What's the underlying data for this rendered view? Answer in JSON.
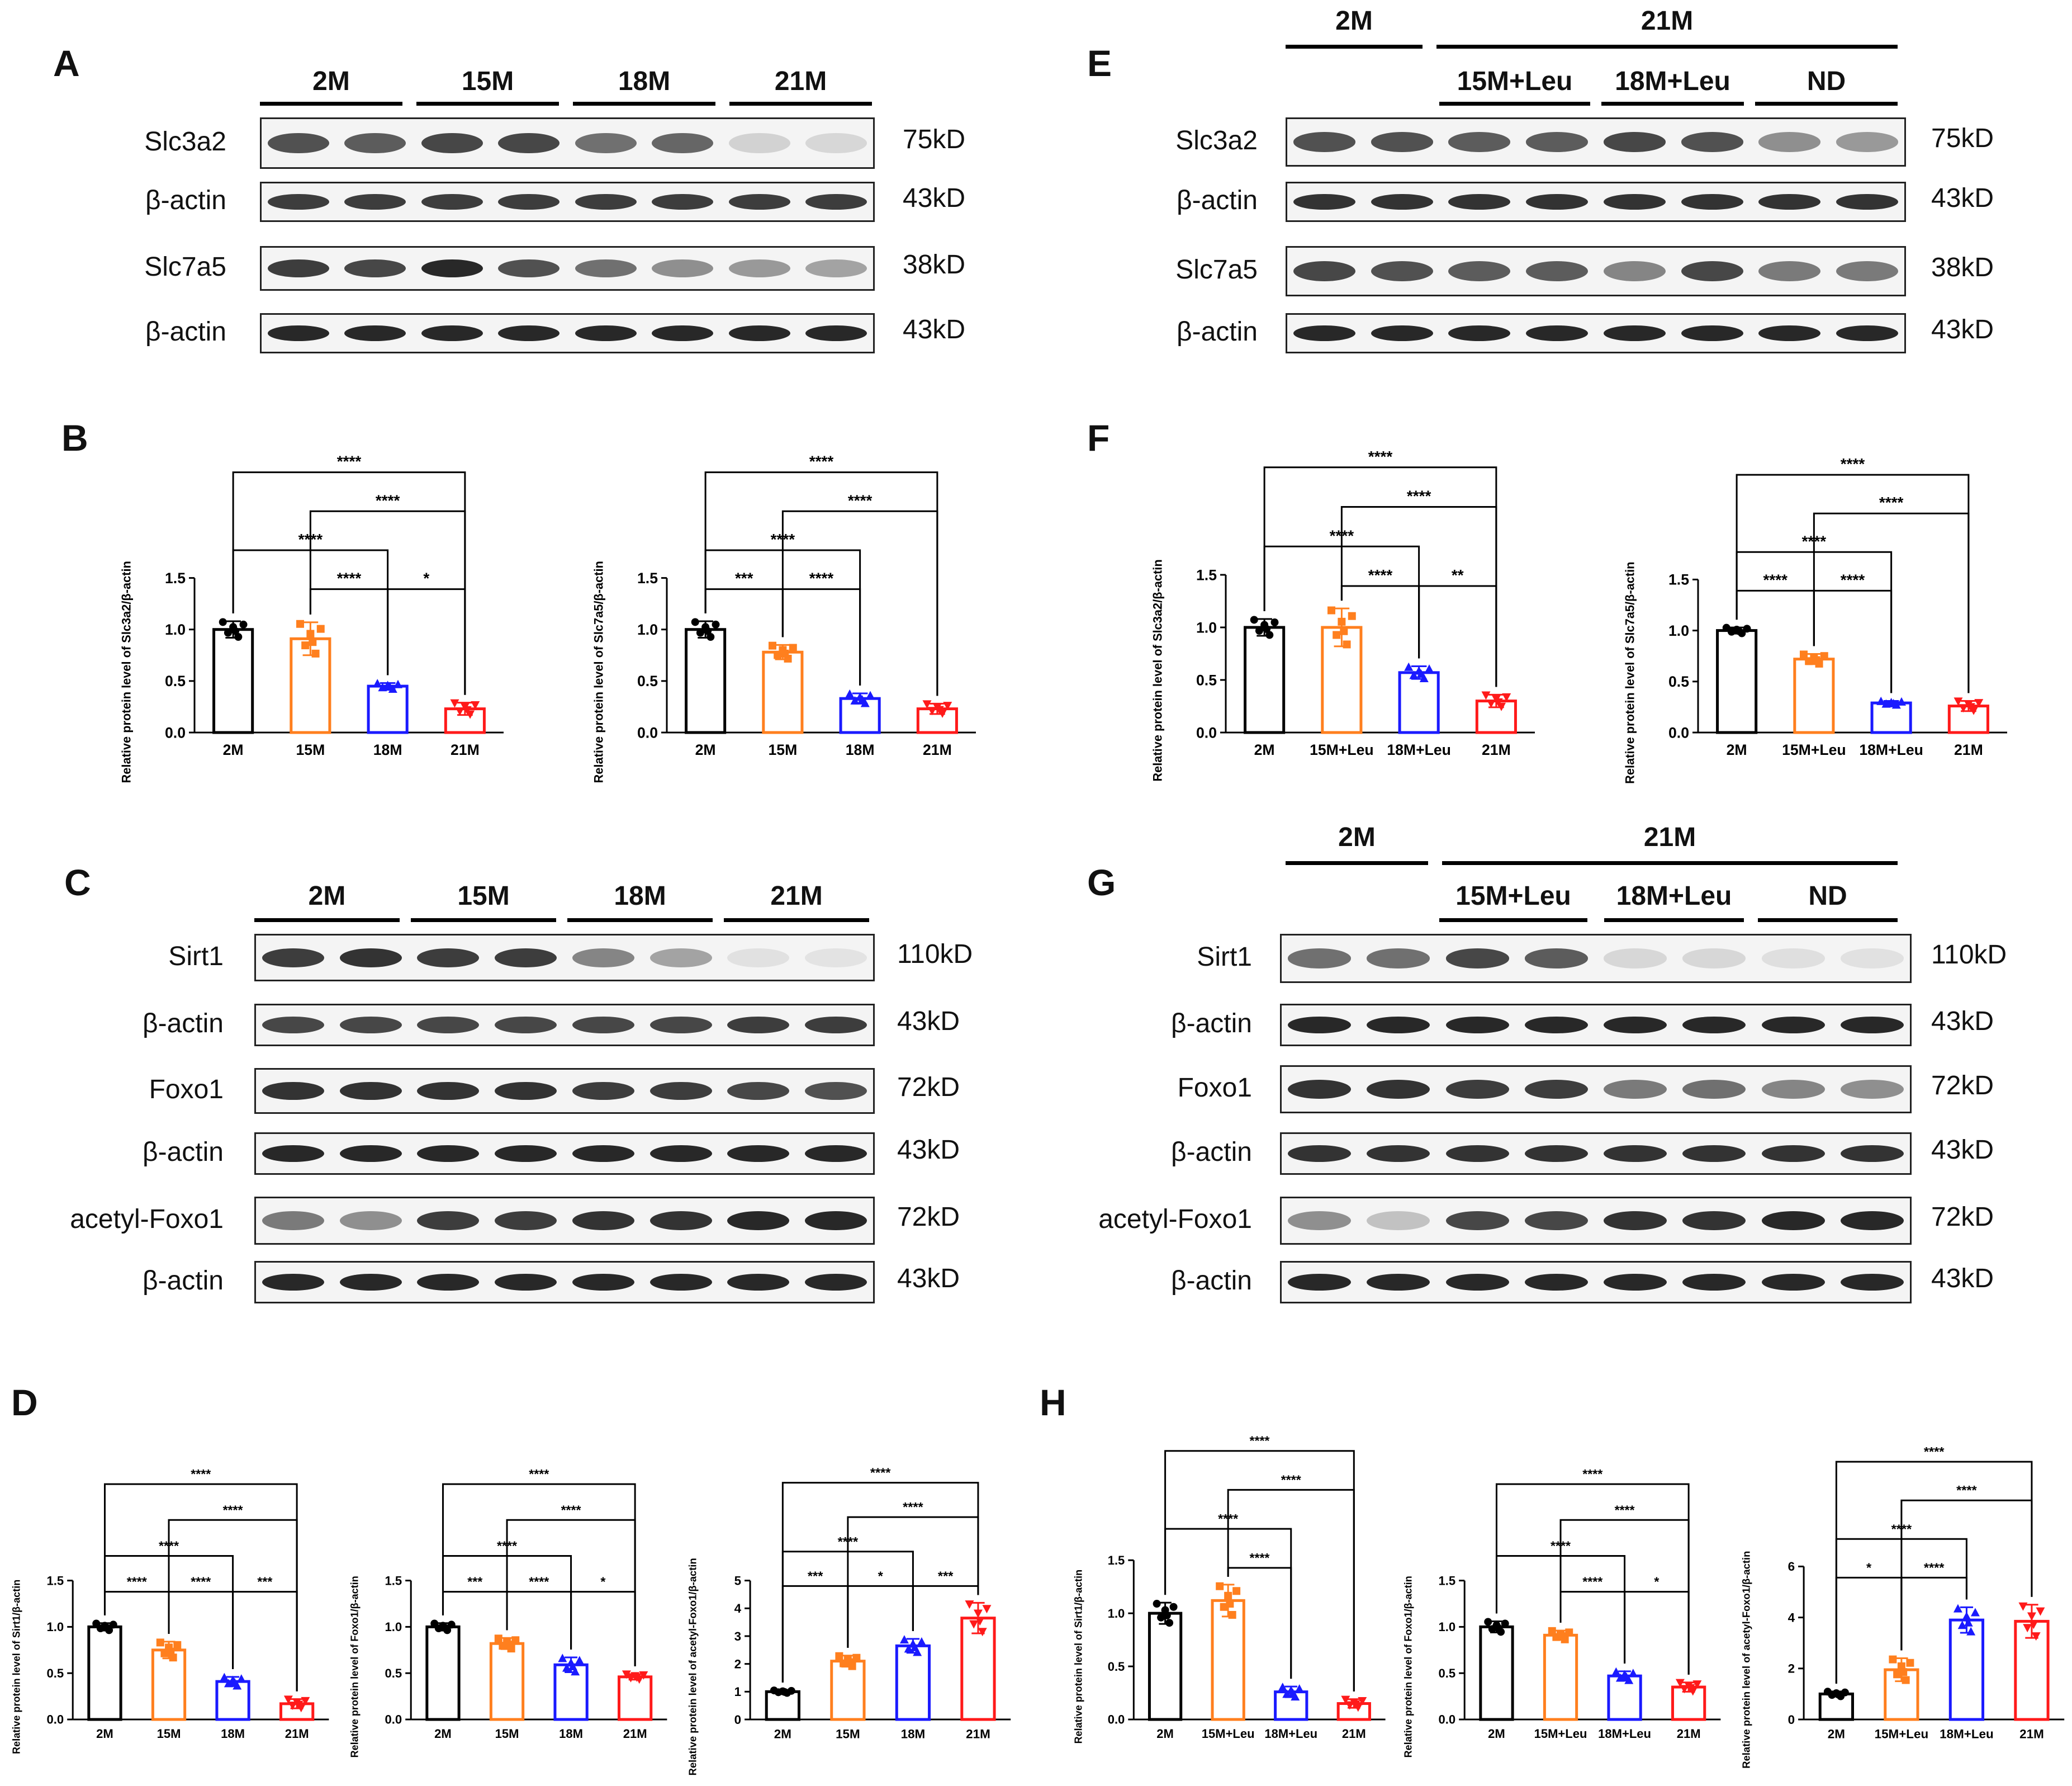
{
  "panels": [
    {
      "id": "A",
      "letter": "A"
    },
    {
      "id": "E",
      "letter": "E"
    },
    {
      "id": "C",
      "letter": "C"
    },
    {
      "id": "G",
      "letter": "G"
    },
    {
      "id": "B",
      "letter": "B"
    },
    {
      "id": "F",
      "letter": "F"
    },
    {
      "id": "D",
      "letter": "D"
    },
    {
      "id": "H",
      "letter": "H"
    }
  ],
  "blots": {
    "A": {
      "groups": [
        "2M",
        "15M",
        "18M",
        "21M"
      ],
      "rows": [
        {
          "label": "Slc3a2",
          "kd": "75kD",
          "intensity": [
            0.75,
            0.7,
            0.8,
            0.8,
            0.6,
            0.65,
            0.12,
            0.1
          ]
        },
        {
          "label": "β-actin",
          "kd": "43kD",
          "intensity": [
            0.85,
            0.85,
            0.85,
            0.85,
            0.85,
            0.85,
            0.85,
            0.85
          ]
        },
        {
          "label": "Slc7a5",
          "kd": "38kD",
          "intensity": [
            0.85,
            0.8,
            0.95,
            0.75,
            0.6,
            0.45,
            0.4,
            0.35
          ]
        },
        {
          "label": "β-actin",
          "kd": "43kD",
          "intensity": [
            0.95,
            0.95,
            0.95,
            0.95,
            0.95,
            0.95,
            0.95,
            0.95
          ]
        }
      ]
    },
    "E": {
      "top_groups": [
        "2M",
        "21M"
      ],
      "groups": [
        "15M+Leu",
        "18M+Leu",
        "ND"
      ],
      "rows": [
        {
          "label": "Slc3a2",
          "kd": "75kD",
          "intensity": [
            0.75,
            0.75,
            0.7,
            0.7,
            0.8,
            0.75,
            0.45,
            0.4
          ]
        },
        {
          "label": "β-actin",
          "kd": "43kD",
          "intensity": [
            0.9,
            0.9,
            0.9,
            0.9,
            0.9,
            0.9,
            0.9,
            0.9
          ]
        },
        {
          "label": "Slc7a5",
          "kd": "38kD",
          "intensity": [
            0.8,
            0.75,
            0.7,
            0.7,
            0.5,
            0.8,
            0.55,
            0.55
          ]
        },
        {
          "label": "β-actin",
          "kd": "43kD",
          "intensity": [
            0.95,
            0.95,
            0.95,
            0.95,
            0.95,
            0.95,
            0.95,
            0.95
          ]
        }
      ]
    },
    "C": {
      "groups": [
        "2M",
        "15M",
        "18M",
        "21M"
      ],
      "rows": [
        {
          "label": "Sirt1",
          "kd": "110kD",
          "intensity": [
            0.85,
            0.9,
            0.85,
            0.85,
            0.5,
            0.35,
            0.05,
            0.04
          ]
        },
        {
          "label": "β-actin",
          "kd": "43kD",
          "intensity": [
            0.8,
            0.8,
            0.8,
            0.8,
            0.8,
            0.8,
            0.85,
            0.85
          ]
        },
        {
          "label": "Foxo1",
          "kd": "72kD",
          "intensity": [
            0.9,
            0.9,
            0.9,
            0.9,
            0.85,
            0.85,
            0.8,
            0.75
          ]
        },
        {
          "label": "β-actin",
          "kd": "43kD",
          "intensity": [
            0.95,
            0.95,
            0.95,
            0.95,
            0.95,
            0.95,
            0.95,
            0.95
          ]
        },
        {
          "label": "acetyl-Foxo1",
          "kd": "72kD",
          "intensity": [
            0.55,
            0.45,
            0.85,
            0.85,
            0.9,
            0.9,
            0.95,
            0.95
          ]
        },
        {
          "label": "β-actin",
          "kd": "43kD",
          "intensity": [
            0.95,
            0.95,
            0.95,
            0.95,
            0.95,
            0.95,
            0.95,
            0.95
          ]
        }
      ]
    },
    "G": {
      "top_groups": [
        "2M",
        "21M"
      ],
      "groups": [
        "15M+Leu",
        "18M+Leu",
        "ND"
      ],
      "rows": [
        {
          "label": "Sirt1",
          "kd": "110kD",
          "intensity": [
            0.6,
            0.6,
            0.8,
            0.7,
            0.1,
            0.1,
            0.06,
            0.05
          ]
        },
        {
          "label": "β-actin",
          "kd": "43kD",
          "intensity": [
            0.95,
            0.95,
            0.95,
            0.95,
            0.95,
            0.95,
            0.95,
            0.95
          ]
        },
        {
          "label": "Foxo1",
          "kd": "72kD",
          "intensity": [
            0.9,
            0.9,
            0.85,
            0.85,
            0.55,
            0.6,
            0.5,
            0.45
          ]
        },
        {
          "label": "β-actin",
          "kd": "43kD",
          "intensity": [
            0.9,
            0.9,
            0.9,
            0.9,
            0.9,
            0.9,
            0.9,
            0.9
          ]
        },
        {
          "label": "acetyl-Foxo1",
          "kd": "72kD",
          "intensity": [
            0.45,
            0.2,
            0.8,
            0.8,
            0.9,
            0.9,
            0.95,
            0.95
          ]
        },
        {
          "label": "β-actin",
          "kd": "43kD",
          "intensity": [
            0.95,
            0.95,
            0.95,
            0.95,
            0.95,
            0.95,
            0.95,
            0.95
          ]
        }
      ]
    }
  },
  "chart_data": [
    {
      "id": "B1",
      "type": "bar",
      "categories": [
        "2M",
        "15M",
        "18M",
        "21M"
      ],
      "values": [
        1.0,
        0.91,
        0.45,
        0.23
      ],
      "errors": [
        0.08,
        0.16,
        0.03,
        0.06
      ],
      "ylabel": "Relative protein level of Slc3a2/β-actin",
      "ylim": [
        0,
        1.5
      ],
      "yticks": [
        "0.0",
        "0.5",
        "1.0",
        "1.5"
      ],
      "sig": [
        {
          "a": 0,
          "b": 3,
          "text": "****"
        },
        {
          "a": 1,
          "b": 3,
          "text": "****"
        },
        {
          "a": 0,
          "b": 2,
          "text": "****"
        },
        {
          "a": 1,
          "b": 2,
          "text": "****"
        },
        {
          "a": 2,
          "b": 3,
          "text": "*"
        }
      ]
    },
    {
      "id": "B2",
      "type": "bar",
      "categories": [
        "2M",
        "15M",
        "18M",
        "21M"
      ],
      "values": [
        1.0,
        0.78,
        0.33,
        0.23
      ],
      "errors": [
        0.08,
        0.07,
        0.05,
        0.05
      ],
      "ylabel": "Relative protein level of Slc7a5/β-actin",
      "ylim": [
        0,
        1.5
      ],
      "yticks": [
        "0.0",
        "0.5",
        "1.0",
        "1.5"
      ],
      "sig": [
        {
          "a": 0,
          "b": 3,
          "text": "****"
        },
        {
          "a": 1,
          "b": 3,
          "text": "****"
        },
        {
          "a": 0,
          "b": 2,
          "text": "****"
        },
        {
          "a": 0,
          "b": 1,
          "text": "***"
        },
        {
          "a": 1,
          "b": 2,
          "text": "****"
        }
      ]
    },
    {
      "id": "F1",
      "type": "bar",
      "categories": [
        "2M",
        "15M+Leu",
        "18M+Leu",
        "21M"
      ],
      "values": [
        1.0,
        1.0,
        0.57,
        0.3
      ],
      "errors": [
        0.08,
        0.18,
        0.06,
        0.06
      ],
      "ylabel": "Relative protein level of Slc3a2/β-actin",
      "ylim": [
        0,
        1.5
      ],
      "yticks": [
        "0.0",
        "0.5",
        "1.0",
        "1.5"
      ],
      "sig": [
        {
          "a": 0,
          "b": 3,
          "text": "****"
        },
        {
          "a": 1,
          "b": 3,
          "text": "****"
        },
        {
          "a": 0,
          "b": 2,
          "text": "****"
        },
        {
          "a": 1,
          "b": 2,
          "text": "****"
        },
        {
          "a": 2,
          "b": 3,
          "text": "**"
        }
      ]
    },
    {
      "id": "F2",
      "type": "bar",
      "categories": [
        "2M",
        "15M+Leu",
        "18M+Leu",
        "21M"
      ],
      "values": [
        1.0,
        0.72,
        0.29,
        0.26
      ],
      "errors": [
        0.03,
        0.05,
        0.02,
        0.05
      ],
      "ylabel": "Relative protein level of Slc7a5/β-actin",
      "ylim": [
        0,
        1.5
      ],
      "yticks": [
        "0.0",
        "0.5",
        "1.0",
        "1.5"
      ],
      "sig": [
        {
          "a": 0,
          "b": 3,
          "text": "****"
        },
        {
          "a": 1,
          "b": 3,
          "text": "****"
        },
        {
          "a": 0,
          "b": 2,
          "text": "****"
        },
        {
          "a": 0,
          "b": 1,
          "text": "****"
        },
        {
          "a": 1,
          "b": 2,
          "text": "****"
        }
      ]
    },
    {
      "id": "D1",
      "type": "bar",
      "categories": [
        "2M",
        "15M",
        "18M",
        "21M"
      ],
      "values": [
        1.0,
        0.75,
        0.41,
        0.17
      ],
      "errors": [
        0.04,
        0.09,
        0.05,
        0.05
      ],
      "ylabel": "Relative protein level of Sirt1/β-actin",
      "ylim": [
        0,
        1.5
      ],
      "yticks": [
        "0.0",
        "0.5",
        "1.0",
        "1.5"
      ],
      "sig": [
        {
          "a": 0,
          "b": 3,
          "text": "****"
        },
        {
          "a": 1,
          "b": 3,
          "text": "****"
        },
        {
          "a": 0,
          "b": 2,
          "text": "****"
        },
        {
          "a": 0,
          "b": 1,
          "text": "****"
        },
        {
          "a": 1,
          "b": 2,
          "text": "****"
        },
        {
          "a": 2,
          "b": 3,
          "text": "***"
        }
      ]
    },
    {
      "id": "D2",
      "type": "bar",
      "categories": [
        "2M",
        "15M",
        "18M",
        "21M"
      ],
      "values": [
        1.0,
        0.82,
        0.59,
        0.46
      ],
      "errors": [
        0.04,
        0.06,
        0.08,
        0.03
      ],
      "ylabel": "Relative protein level of Foxo1/β-actin",
      "ylim": [
        0,
        1.5
      ],
      "yticks": [
        "0.0",
        "0.5",
        "1.0",
        "1.5"
      ],
      "sig": [
        {
          "a": 0,
          "b": 3,
          "text": "****"
        },
        {
          "a": 1,
          "b": 3,
          "text": "****"
        },
        {
          "a": 0,
          "b": 2,
          "text": "****"
        },
        {
          "a": 0,
          "b": 1,
          "text": "***"
        },
        {
          "a": 1,
          "b": 2,
          "text": "****"
        },
        {
          "a": 2,
          "b": 3,
          "text": "*"
        }
      ]
    },
    {
      "id": "D3",
      "type": "bar",
      "categories": [
        "2M",
        "15M",
        "18M",
        "21M"
      ],
      "values": [
        1.0,
        2.1,
        2.65,
        3.65
      ],
      "errors": [
        0.05,
        0.2,
        0.25,
        0.55
      ],
      "ylabel": "Relative protein level of acetyl-Foxo1/β-actin",
      "ylim": [
        0,
        5
      ],
      "yticks": [
        "0",
        "1",
        "2",
        "3",
        "4",
        "5"
      ],
      "sig": [
        {
          "a": 0,
          "b": 3,
          "text": "****"
        },
        {
          "a": 1,
          "b": 3,
          "text": "****"
        },
        {
          "a": 0,
          "b": 2,
          "text": "****"
        },
        {
          "a": 0,
          "b": 1,
          "text": "***"
        },
        {
          "a": 1,
          "b": 2,
          "text": "*"
        },
        {
          "a": 2,
          "b": 3,
          "text": "***"
        }
      ]
    },
    {
      "id": "H1",
      "type": "bar",
      "categories": [
        "2M",
        "15M+Leu",
        "18M+Leu",
        "21M"
      ],
      "values": [
        1.0,
        1.12,
        0.26,
        0.15
      ],
      "errors": [
        0.1,
        0.15,
        0.05,
        0.04
      ],
      "ylabel": "Relative protein level of Sirt1/β-actin",
      "ylim": [
        0,
        1.5
      ],
      "yticks": [
        "0.0",
        "0.5",
        "1.0",
        "1.5"
      ],
      "sig": [
        {
          "a": 0,
          "b": 3,
          "text": "****"
        },
        {
          "a": 1,
          "b": 3,
          "text": "****"
        },
        {
          "a": 0,
          "b": 2,
          "text": "****"
        },
        {
          "a": 1,
          "b": 2,
          "text": "****"
        }
      ]
    },
    {
      "id": "H2",
      "type": "bar",
      "categories": [
        "2M",
        "15M+Leu",
        "18M+Leu",
        "21M"
      ],
      "values": [
        1.0,
        0.91,
        0.47,
        0.35
      ],
      "errors": [
        0.06,
        0.05,
        0.05,
        0.05
      ],
      "ylabel": "Relative protein level of Foxo1/β-actin",
      "ylim": [
        0,
        1.5
      ],
      "yticks": [
        "0.0",
        "0.5",
        "1.0",
        "1.5"
      ],
      "sig": [
        {
          "a": 0,
          "b": 3,
          "text": "****"
        },
        {
          "a": 1,
          "b": 3,
          "text": "****"
        },
        {
          "a": 0,
          "b": 2,
          "text": "****"
        },
        {
          "a": 1,
          "b": 2,
          "text": "****"
        },
        {
          "a": 2,
          "b": 3,
          "text": "*"
        }
      ]
    },
    {
      "id": "H3",
      "type": "bar",
      "categories": [
        "2M",
        "15M+Leu",
        "18M+Leu",
        "21M"
      ],
      "values": [
        1.0,
        1.95,
        3.9,
        3.85
      ],
      "errors": [
        0.1,
        0.45,
        0.5,
        0.65
      ],
      "ylabel": "Relative protein level of acetyl-Foxo1/β-actin",
      "ylim": [
        0,
        6
      ],
      "yticks": [
        "0",
        "2",
        "4",
        "6"
      ],
      "sig": [
        {
          "a": 0,
          "b": 3,
          "text": "****"
        },
        {
          "a": 1,
          "b": 3,
          "text": "****"
        },
        {
          "a": 0,
          "b": 2,
          "text": "****"
        },
        {
          "a": 0,
          "b": 1,
          "text": "*"
        },
        {
          "a": 1,
          "b": 2,
          "text": "****"
        }
      ]
    }
  ],
  "colors": {
    "group0": "#000000",
    "group1": "#ff7f1e",
    "group2": "#1a1aff",
    "group3": "#ff1a1a"
  }
}
